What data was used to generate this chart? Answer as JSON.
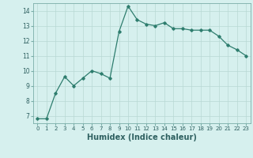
{
  "x": [
    0,
    1,
    2,
    3,
    4,
    5,
    6,
    7,
    8,
    9,
    10,
    11,
    12,
    13,
    14,
    15,
    16,
    17,
    18,
    19,
    20,
    21,
    22,
    23
  ],
  "y": [
    6.8,
    6.8,
    8.5,
    9.6,
    9.0,
    9.5,
    10.0,
    9.8,
    9.5,
    12.6,
    14.3,
    13.4,
    13.1,
    13.0,
    13.2,
    12.8,
    12.8,
    12.7,
    12.7,
    12.7,
    12.3,
    11.7,
    11.4,
    11.0
  ],
  "xlabel": "Humidex (Indice chaleur)",
  "ylim": [
    6.5,
    14.5
  ],
  "xlim": [
    -0.5,
    23.5
  ],
  "yticks": [
    7,
    8,
    9,
    10,
    11,
    12,
    13,
    14
  ],
  "xtick_labels": [
    "0",
    "1",
    "2",
    "3",
    "4",
    "5",
    "6",
    "7",
    "8",
    "9",
    "10",
    "11",
    "12",
    "13",
    "14",
    "15",
    "16",
    "17",
    "18",
    "19",
    "20",
    "21",
    "22",
    "23"
  ],
  "line_color": "#2e7d6e",
  "marker": "D",
  "marker_size": 1.8,
  "bg_color": "#d6f0ee",
  "grid_color": "#b8d8d4",
  "label_fontsize": 7,
  "tick_fontsize": 5.5
}
